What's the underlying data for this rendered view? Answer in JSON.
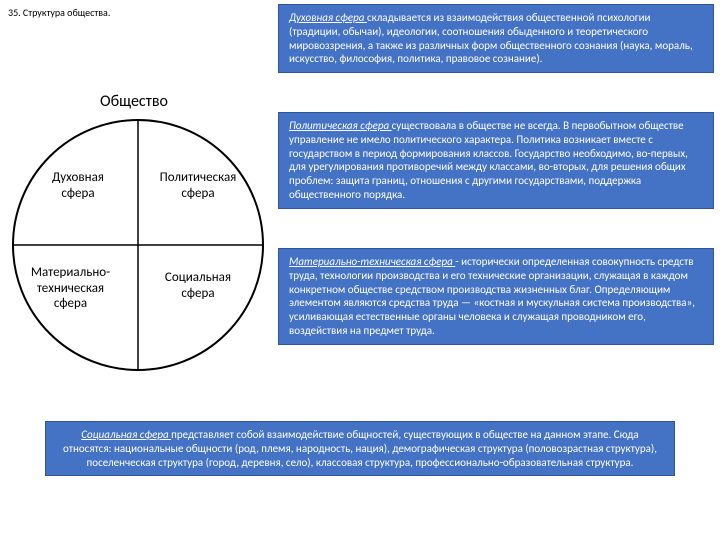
{
  "title": "35. Структура общества.",
  "society_label": "Общество",
  "quadrants": {
    "q1": "Духовная\nсфера",
    "q2": "Политическая\nсфера",
    "q3": "Материально-\nтехническая\nсфера",
    "q4": "Социальная\nсфера"
  },
  "boxes": {
    "b1": {
      "ital": "Духовная сфера ",
      "rest": "складывается из взаимодействия общественной психологии (традиции, обычаи), идеологии, соотношения обыденного и теоретического мировоззрения, а также из различных форм общественного сознания (наука, мораль, искусство, философия, политика, правовое сознание)."
    },
    "b2": {
      "ital": "Политическая сфера ",
      "rest": "существовала в обществе не всегда. В первобытном обществе управление не имело политического характера. Политика возникает вместе с государством в период формирования классов. Государство необходимо, во-первых, для урегулирования противоречий между классами, во-вторых, для решения общих проблем: защита границ, отношения с другими государствами, поддержка общественного порядка."
    },
    "b3": {
      "ital": "Материально-техническая сфера ",
      "rest": "- исторически определенная совокупность средств труда, технологии производства и его технические организации, служащая в каждом конкретном обществе средством производства жизненных благ. Определяющим элементом являются средства труда — «костная и мускульная система производства», усиливающая естественные органы человека и служащая проводником его, воздействия на предмет труда."
    },
    "b4": {
      "ital": "Социальная сфера ",
      "rest": "представляет собой взаимодействие общностей, существующих в обществе на данном этапе. Сюда относятся: национальные общности (род, племя, народность, нация), демографическая структура (половозрастная структура), поселенческая структура (город, деревня, село), классовая структура, профессионально-образовательная структура."
    }
  },
  "colors": {
    "box_bg": "#4472c4",
    "box_border": "#2f5597",
    "text": "#000000"
  }
}
